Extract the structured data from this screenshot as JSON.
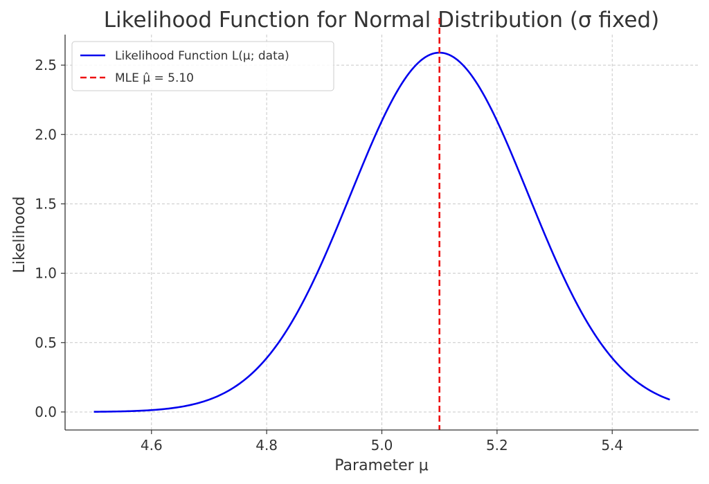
{
  "chart_data": {
    "type": "line",
    "title": "Likelihood Function for Normal Distribution (σ fixed)",
    "xlabel": "Parameter μ",
    "ylabel": "Likelihood",
    "xlim": [
      4.45,
      5.55
    ],
    "ylim": [
      -0.13,
      2.72
    ],
    "xticks": [
      4.6,
      4.8,
      5.0,
      5.2,
      5.4
    ],
    "xtick_labels": [
      "4.6",
      "4.8",
      "5.0",
      "5.2",
      "5.4"
    ],
    "yticks": [
      0.0,
      0.5,
      1.0,
      1.5,
      2.0,
      2.5
    ],
    "ytick_labels": [
      "0.0",
      "0.5",
      "1.0",
      "1.5",
      "2.0",
      "2.5"
    ],
    "grid": true,
    "legend_position": "top-left",
    "series": [
      {
        "name": "Likelihood Function L(μ; data)",
        "kind": "curve",
        "color": "#0000ee",
        "x_range": [
          4.5,
          5.5
        ],
        "peak_x": 5.1,
        "peak_y": 2.59,
        "spread": 0.154
      }
    ],
    "reference_lines": [
      {
        "name": "MLE μ̂ = 5.10",
        "orientation": "vertical",
        "x": 5.1,
        "color": "#ee1111",
        "style": "dashed"
      }
    ]
  }
}
